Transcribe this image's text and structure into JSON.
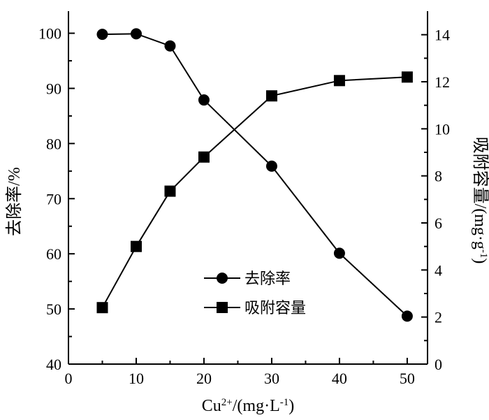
{
  "chart_data": {
    "type": "line",
    "x_label": "Cu2+/(mg·L-1)",
    "y_left_label": "去除率/%",
    "y_right_label": "吸附容量/(mg·g-1)",
    "x_ticks": [
      "0",
      "10",
      "20",
      "30",
      "40",
      "50"
    ],
    "y_left_ticks": [
      "40",
      "50",
      "60",
      "70",
      "80",
      "90",
      "100"
    ],
    "y_right_ticks": [
      "0",
      "2",
      "4",
      "6",
      "8",
      "10",
      "12",
      "14"
    ],
    "xlim": [
      0,
      53
    ],
    "y_left_lim": [
      40,
      104
    ],
    "y_right_lim": [
      0,
      15
    ],
    "legend_position": "center-right",
    "series": [
      {
        "name": "去除率",
        "axis": "left",
        "marker": "circle",
        "x": [
          5,
          10,
          15,
          20,
          30,
          40,
          50
        ],
        "y": [
          99.8,
          99.9,
          97.7,
          87.9,
          75.9,
          60.1,
          48.7
        ]
      },
      {
        "name": "吸附容量",
        "axis": "right",
        "marker": "square",
        "x": [
          5,
          10,
          15,
          20,
          30,
          40,
          50
        ],
        "y": [
          2.4,
          5.0,
          7.35,
          8.8,
          11.4,
          12.05,
          12.2
        ]
      }
    ]
  }
}
